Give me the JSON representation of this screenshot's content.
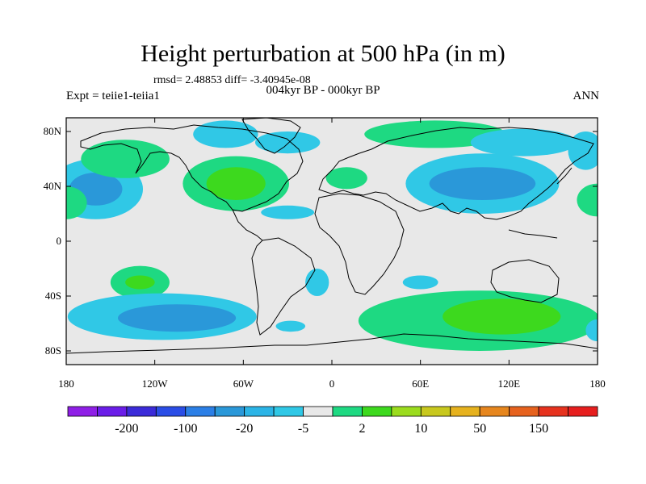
{
  "title": "Height perturbation at 500 hPa (in m)",
  "stats_text": "rmsd= 2.48853 diff= -3.40945e-08",
  "left_label": "Expt = teiie1-teiia1",
  "center_label": "004kyr BP - 000kyr BP",
  "right_label": "ANN",
  "axes": {
    "lat_ticks": [
      {
        "value": 80,
        "label": "80N"
      },
      {
        "value": 40,
        "label": "40N"
      },
      {
        "value": 0,
        "label": "0"
      },
      {
        "value": -40,
        "label": "40S"
      },
      {
        "value": -80,
        "label": "80S"
      }
    ],
    "lon_ticks": [
      {
        "value": -180,
        "label": "180"
      },
      {
        "value": -120,
        "label": "120W"
      },
      {
        "value": -60,
        "label": "60W"
      },
      {
        "value": 0,
        "label": "0"
      },
      {
        "value": 60,
        "label": "60E"
      },
      {
        "value": 120,
        "label": "120E"
      },
      {
        "value": 180,
        "label": "180"
      }
    ],
    "lat_range": [
      -90,
      90
    ],
    "lon_range": [
      -180,
      180
    ]
  },
  "colorbar": {
    "colors": [
      "#8f1fe6",
      "#6a1de8",
      "#3b2bd9",
      "#2a4de6",
      "#2b7fe6",
      "#2a98d9",
      "#2bb4e6",
      "#30c8e6",
      "#e8e8e8",
      "#1ed982",
      "#3dd91e",
      "#9bdc1e",
      "#c8c81e",
      "#e6b21e",
      "#e6861e",
      "#e6621e",
      "#e6321e",
      "#e61e1e"
    ],
    "labels": [
      "-200",
      "-100",
      "-20",
      "-5",
      "2",
      "10",
      "50",
      "150"
    ]
  },
  "field": {
    "background_color": "#e8e8e8",
    "blobs": [
      {
        "lon": -160,
        "lat": 38,
        "rx": 32,
        "ry": 22,
        "level": "blue_light"
      },
      {
        "lon": -160,
        "lat": 38,
        "rx": 18,
        "ry": 12,
        "level": "blue_mid"
      },
      {
        "lon": -180,
        "lat": 28,
        "rx": 14,
        "ry": 12,
        "level": "green_light"
      },
      {
        "lon": -140,
        "lat": 60,
        "rx": 30,
        "ry": 14,
        "level": "green_light"
      },
      {
        "lon": -65,
        "lat": 42,
        "rx": 36,
        "ry": 20,
        "level": "green_light"
      },
      {
        "lon": -65,
        "lat": 42,
        "rx": 20,
        "ry": 12,
        "level": "green_dark"
      },
      {
        "lon": -72,
        "lat": 78,
        "rx": 22,
        "ry": 10,
        "level": "blue_light"
      },
      {
        "lon": -30,
        "lat": 72,
        "rx": 22,
        "ry": 8,
        "level": "blue_light"
      },
      {
        "lon": 10,
        "lat": 46,
        "rx": 14,
        "ry": 8,
        "level": "green_light"
      },
      {
        "lon": -30,
        "lat": 21,
        "rx": 18,
        "ry": 5,
        "level": "blue_light"
      },
      {
        "lon": 70,
        "lat": 78,
        "rx": 48,
        "ry": 10,
        "level": "green_light"
      },
      {
        "lon": 130,
        "lat": 72,
        "rx": 36,
        "ry": 10,
        "level": "blue_light"
      },
      {
        "lon": 102,
        "lat": 42,
        "rx": 52,
        "ry": 22,
        "level": "blue_light"
      },
      {
        "lon": 102,
        "lat": 42,
        "rx": 36,
        "ry": 12,
        "level": "blue_mid"
      },
      {
        "lon": 180,
        "lat": 30,
        "rx": 14,
        "ry": 12,
        "level": "green_light"
      },
      {
        "lon": 172,
        "lat": 66,
        "rx": 12,
        "ry": 14,
        "level": "blue_light"
      },
      {
        "lon": -130,
        "lat": -30,
        "rx": 20,
        "ry": 12,
        "level": "green_light"
      },
      {
        "lon": -130,
        "lat": -30,
        "rx": 10,
        "ry": 5,
        "level": "green_dark"
      },
      {
        "lon": -115,
        "lat": -55,
        "rx": 64,
        "ry": 17,
        "level": "blue_light"
      },
      {
        "lon": -105,
        "lat": -56,
        "rx": 40,
        "ry": 10,
        "level": "blue_mid"
      },
      {
        "lon": -10,
        "lat": -30,
        "rx": 8,
        "ry": 10,
        "level": "blue_light"
      },
      {
        "lon": 60,
        "lat": -30,
        "rx": 12,
        "ry": 5,
        "level": "blue_light"
      },
      {
        "lon": 100,
        "lat": -58,
        "rx": 82,
        "ry": 22,
        "level": "green_light"
      },
      {
        "lon": 115,
        "lat": -55,
        "rx": 40,
        "ry": 13,
        "level": "green_dark"
      },
      {
        "lon": -28,
        "lat": -62,
        "rx": 10,
        "ry": 4,
        "level": "blue_light"
      },
      {
        "lon": 180,
        "lat": -65,
        "rx": 8,
        "ry": 8,
        "level": "blue_light"
      }
    ]
  }
}
